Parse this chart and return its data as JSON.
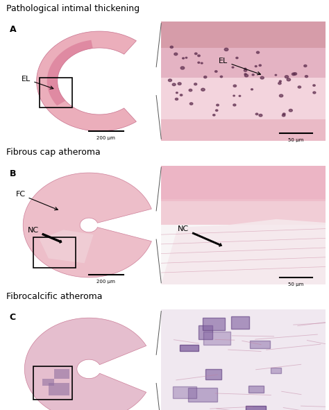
{
  "title_row1": "Pathological intimal thickening",
  "title_row2": "Fibrous cap atheroma",
  "title_row3": "Fibrocalcific atheroma",
  "label_A": "A",
  "label_B": "B",
  "label_C": "C",
  "label_EL": "EL",
  "label_FC": "FC",
  "label_NC": "NC",
  "scalebar_200": "200 μm",
  "scalebar_50": "50 μm",
  "title_fontsize": 9,
  "label_fontsize": 8,
  "panel_bg": "#dce8f0",
  "cell_color": "#603050",
  "calc_edge_color": "#604080"
}
